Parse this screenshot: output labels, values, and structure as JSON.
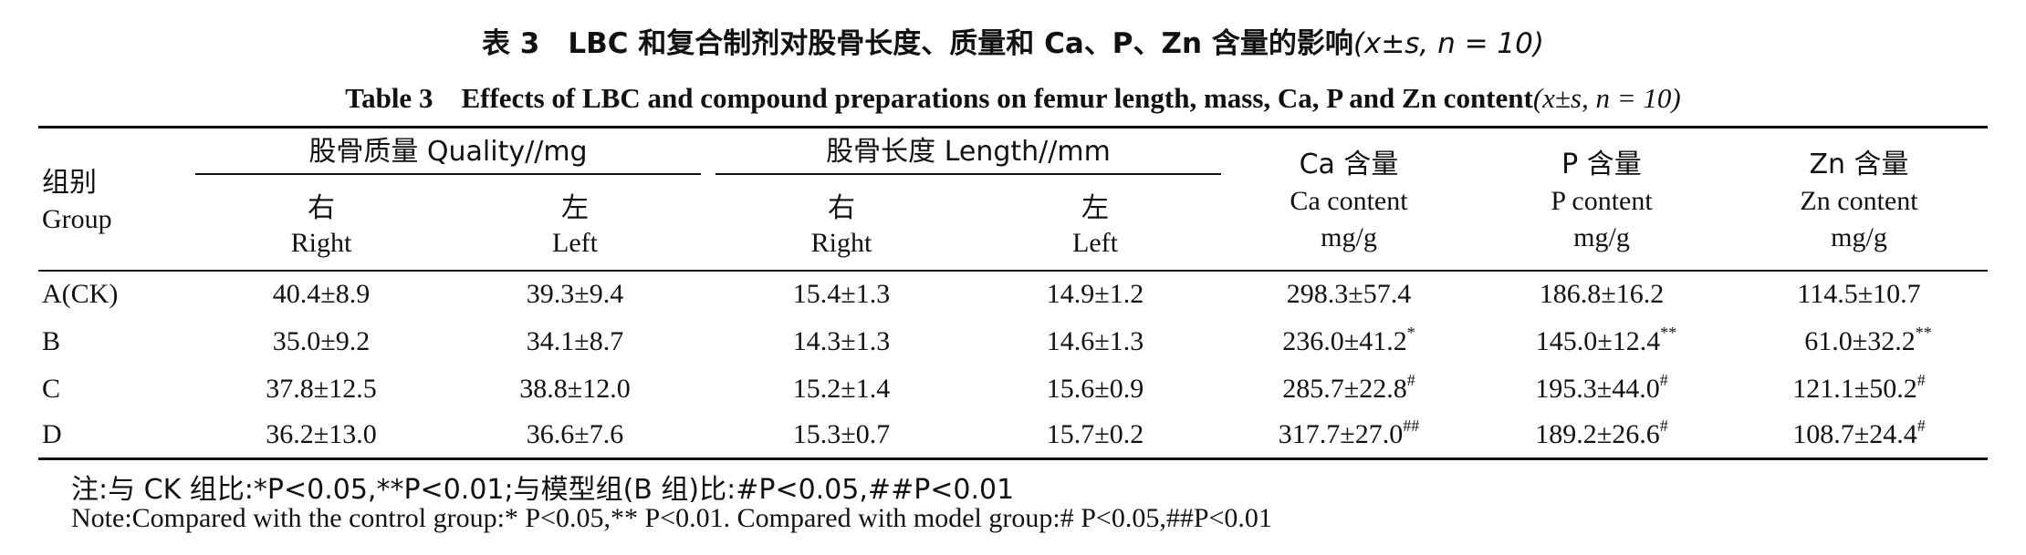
{
  "title": {
    "zh": "表 3　LBC 和复合制剂对股骨长度、质量和 Ca、P、Zn 含量的影响",
    "zh_stat": "(x±s, n = 10)",
    "en": "Table 3　Effects of LBC and compound preparations on femur length, mass, Ca, P and Zn content",
    "en_stat": "(x±s, n = 10)"
  },
  "header": {
    "group_zh": "组别",
    "group_en": "Group",
    "quality": "股骨质量 Quality//mg",
    "length": "股骨长度 Length//mm",
    "right_zh": "右",
    "right_en": "Right",
    "left_zh": "左",
    "left_en": "Left",
    "ca_zh": "Ca 含量",
    "ca_en": "Ca content",
    "p_zh": "P 含量",
    "p_en": "P content",
    "zn_zh": "Zn 含量",
    "zn_en": "Zn content",
    "unit": "mg/g"
  },
  "rows": [
    {
      "group": "A(CK)",
      "q_right": "40.4±8.9",
      "q_left": "39.3±9.4",
      "l_right": "15.4±1.3",
      "l_left": "14.9±1.2",
      "ca": "298.3±57.4",
      "ca_mark": "",
      "p": "186.8±16.2",
      "p_mark": "",
      "zn": "114.5±10.7",
      "zn_mark": ""
    },
    {
      "group": "B",
      "q_right": "35.0±9.2",
      "q_left": "34.1±8.7",
      "l_right": "14.3±1.3",
      "l_left": "14.6±1.3",
      "ca": "236.0±41.2",
      "ca_mark": "*",
      "p": "145.0±12.4",
      "p_mark": "**",
      "zn": "61.0±32.2",
      "zn_mark": "**"
    },
    {
      "group": "C",
      "q_right": "37.8±12.5",
      "q_left": "38.8±12.0",
      "l_right": "15.2±1.4",
      "l_left": "15.6±0.9",
      "ca": "285.7±22.8",
      "ca_mark": "#",
      "p": "195.3±44.0",
      "p_mark": "#",
      "zn": "121.1±50.2",
      "zn_mark": "#"
    },
    {
      "group": "D",
      "q_right": "36.2±13.0",
      "q_left": "36.6±7.6",
      "l_right": "15.3±0.7",
      "l_left": "15.7±0.2",
      "ca": "317.7±27.0",
      "ca_mark": "##",
      "p": "189.2±26.6",
      "p_mark": "#",
      "zn": "108.7±24.4",
      "zn_mark": "#"
    }
  ],
  "notes": {
    "zh": "注:与 CK 组比:*P<0.05,**P<0.01;与模型组(B 组)比:#P<0.05,##P<0.01",
    "en": "Note:Compared with the control group:* P<0.05,** P<0.01. Compared with model group:# P<0.05,##P<0.01"
  }
}
